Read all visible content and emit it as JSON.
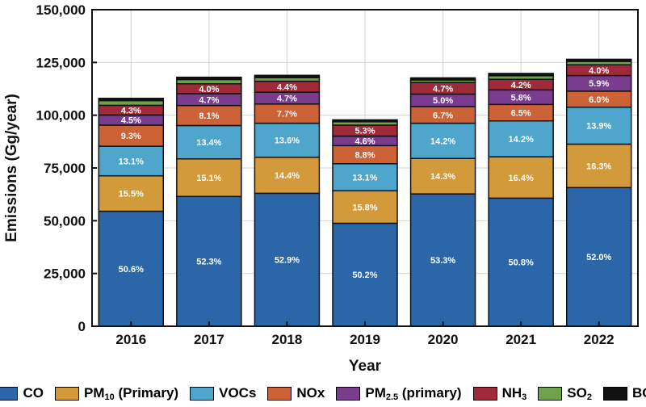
{
  "chart_data": {
    "type": "bar",
    "stacked": true,
    "xlabel": "Year",
    "ylabel": "Emissions (Gg/year)",
    "ylim": [
      0,
      150000
    ],
    "yticks": [
      0,
      25000,
      50000,
      75000,
      100000,
      125000,
      150000
    ],
    "ytick_labels": [
      "0",
      "25,000",
      "50,000",
      "75,000",
      "100,000",
      "125,000",
      "150,000"
    ],
    "grid": true,
    "categories": [
      "2016",
      "2017",
      "2018",
      "2019",
      "2020",
      "2021",
      "2022"
    ],
    "series": [
      {
        "name": "CO",
        "color": "#2b67a8",
        "values": [
          54500,
          61500,
          63000,
          48800,
          62700,
          60700,
          65700
        ],
        "labels": [
          "50.6%",
          "52.3%",
          "52.9%",
          "50.2%",
          "53.3%",
          "50.8%",
          "52.0%"
        ]
      },
      {
        "name": "PM10 (Primary)",
        "color": "#d29a3b",
        "values": [
          16800,
          17800,
          17100,
          15400,
          16800,
          19600,
          20600
        ],
        "labels": [
          "15.5%",
          "15.1%",
          "14.4%",
          "15.8%",
          "14.3%",
          "16.4%",
          "16.3%"
        ]
      },
      {
        "name": "VOCs",
        "color": "#4fa6cc",
        "values": [
          14000,
          15800,
          16100,
          12800,
          16700,
          17000,
          17500
        ],
        "labels": [
          "13.1%",
          "13.4%",
          "13.6%",
          "13.1%",
          "14.2%",
          "14.2%",
          "13.9%"
        ]
      },
      {
        "name": "NOx",
        "color": "#cd6236",
        "values": [
          10000,
          9500,
          9100,
          8600,
          7900,
          7800,
          7600
        ],
        "labels": [
          "9.3%",
          "8.1%",
          "7.7%",
          "8.8%",
          "6.7%",
          "6.5%",
          "6.0%"
        ]
      },
      {
        "name": "PM2.5 (primary)",
        "color": "#7a3c8e",
        "values": [
          4800,
          5600,
          5600,
          4500,
          5900,
          6900,
          7400
        ],
        "labels": [
          "4.5%",
          "4.7%",
          "4.7%",
          "4.6%",
          "5.0%",
          "5.8%",
          "5.9%"
        ]
      },
      {
        "name": "NH3",
        "color": "#a12a3a",
        "values": [
          4600,
          4700,
          5200,
          5200,
          5500,
          5000,
          5100
        ],
        "labels": [
          "4.3%",
          "4.0%",
          "4.4%",
          "5.3%",
          "4.7%",
          "4.2%",
          "4.0%"
        ]
      },
      {
        "name": "SO2",
        "color": "#6fa24a",
        "values": [
          2200,
          2000,
          1700,
          1600,
          1200,
          1700,
          1600
        ],
        "labels": [
          "",
          "",
          "",
          "",
          "",
          "",
          ""
        ]
      },
      {
        "name": "BC",
        "color": "#111111",
        "values": [
          1100,
          1100,
          1100,
          900,
          1000,
          1100,
          1000
        ],
        "labels": [
          "",
          "",
          "",
          "",
          "",
          "",
          ""
        ]
      }
    ]
  },
  "legend": [
    {
      "main": "CO",
      "sub": "",
      "tail": "",
      "color": "#2b67a8"
    },
    {
      "main": "PM",
      "sub": "10",
      "tail": " (Primary)",
      "color": "#d29a3b"
    },
    {
      "main": "VOCs",
      "sub": "",
      "tail": "",
      "color": "#4fa6cc"
    },
    {
      "main": "NOx",
      "sub": "",
      "tail": "",
      "color": "#cd6236"
    },
    {
      "main": "PM",
      "sub": "2.5",
      "tail": " (primary)",
      "color": "#7a3c8e"
    },
    {
      "main": "NH",
      "sub": "3",
      "tail": "",
      "color": "#a12a3a"
    },
    {
      "main": "SO",
      "sub": "2",
      "tail": "",
      "color": "#6fa24a"
    },
    {
      "main": "BC",
      "sub": "",
      "tail": "",
      "color": "#111111"
    }
  ]
}
